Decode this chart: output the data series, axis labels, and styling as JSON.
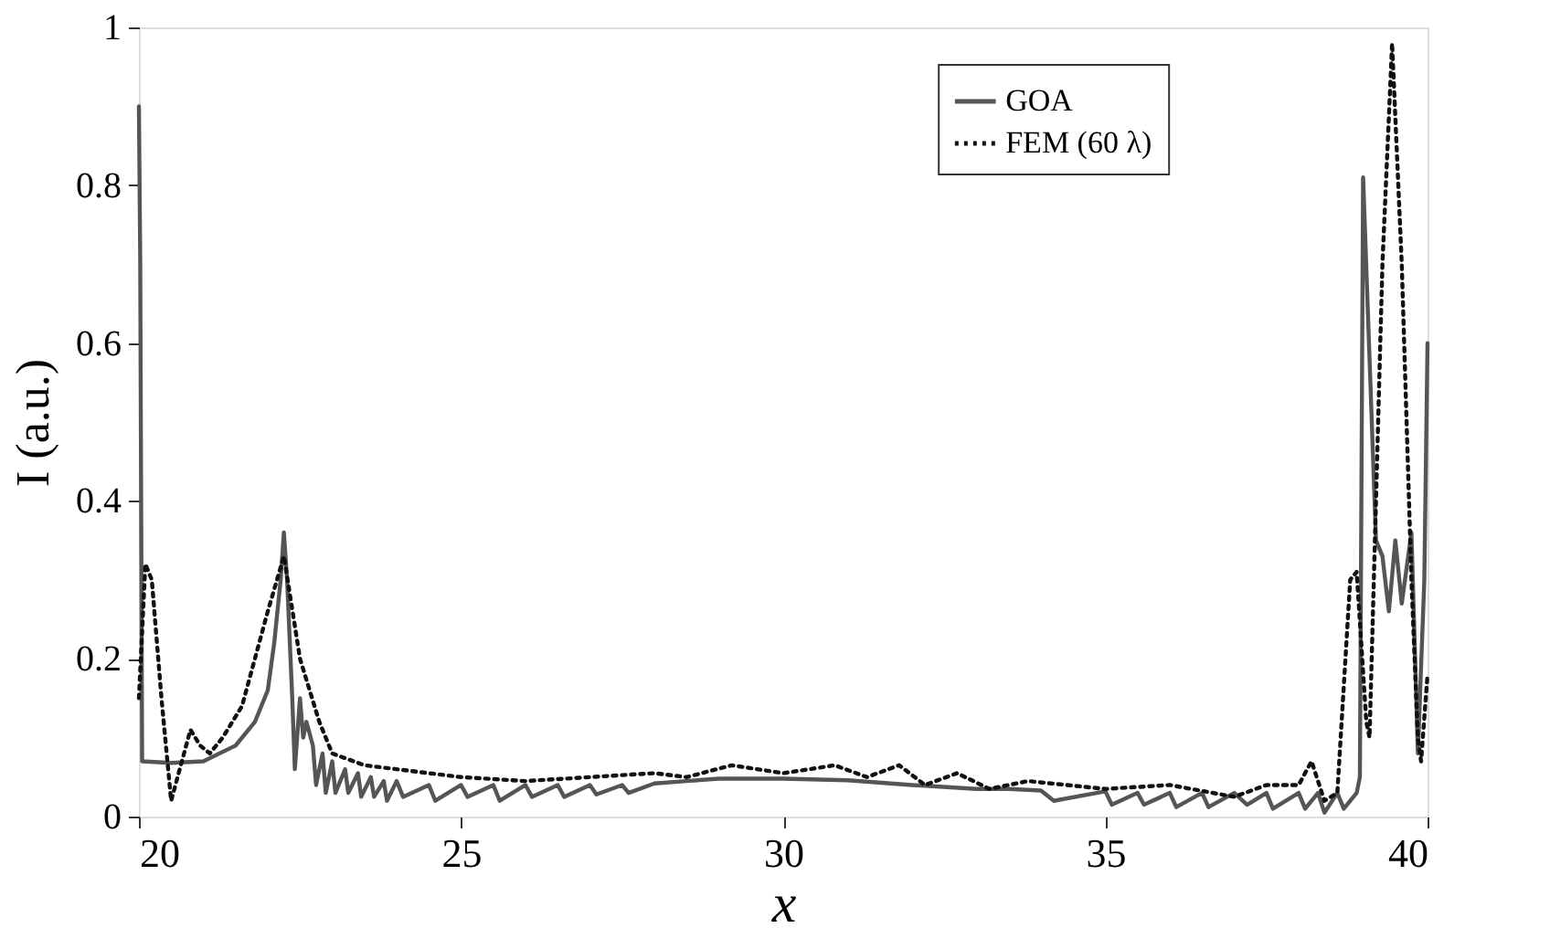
{
  "chart_data": {
    "type": "line",
    "xlabel": "x",
    "ylabel": "I (a.u.)",
    "xlim": [
      20,
      40
    ],
    "ylim": [
      0,
      1
    ],
    "xticks": [
      20,
      25,
      30,
      35,
      40
    ],
    "yticks": [
      0,
      0.2,
      0.4,
      0.6,
      0.8,
      1
    ],
    "grid": false,
    "legend": "top right",
    "marker": "none",
    "series": [
      {
        "name": "GOA",
        "color": "#555555",
        "line_style": "solid",
        "x": [
          20,
          20.02,
          20.05,
          20.5,
          21,
          21.5,
          21.8,
          22,
          22.1,
          22.2,
          22.25,
          22.3,
          22.38,
          22.42,
          22.5,
          22.55,
          22.6,
          22.7,
          22.75,
          22.85,
          22.9,
          23,
          23.05,
          23.2,
          23.25,
          23.4,
          23.45,
          23.6,
          23.65,
          23.8,
          23.85,
          24,
          24.1,
          24.5,
          24.6,
          25,
          25.1,
          25.5,
          25.6,
          26,
          26.1,
          26.5,
          26.6,
          27,
          27.1,
          27.5,
          27.6,
          28,
          28.5,
          29,
          30,
          31,
          32,
          33,
          33.5,
          34,
          34.2,
          35,
          35.1,
          35.5,
          35.6,
          36,
          36.1,
          36.5,
          36.6,
          37,
          37.2,
          37.5,
          37.6,
          38,
          38.1,
          38.3,
          38.4,
          38.6,
          38.7,
          38.9,
          38.95,
          39,
          39.2,
          39.3,
          39.4,
          39.5,
          39.6,
          39.75,
          39.85,
          39.95,
          40
        ],
        "values": [
          0.9,
          0.71,
          0.07,
          0.068,
          0.07,
          0.09,
          0.12,
          0.16,
          0.22,
          0.3,
          0.36,
          0.3,
          0.15,
          0.06,
          0.15,
          0.1,
          0.12,
          0.09,
          0.04,
          0.08,
          0.03,
          0.07,
          0.03,
          0.06,
          0.03,
          0.055,
          0.025,
          0.05,
          0.025,
          0.045,
          0.02,
          0.045,
          0.025,
          0.04,
          0.02,
          0.04,
          0.025,
          0.04,
          0.02,
          0.04,
          0.025,
          0.04,
          0.025,
          0.04,
          0.028,
          0.04,
          0.03,
          0.042,
          0.045,
          0.048,
          0.048,
          0.046,
          0.04,
          0.035,
          0.035,
          0.033,
          0.02,
          0.032,
          0.015,
          0.03,
          0.015,
          0.03,
          0.012,
          0.03,
          0.012,
          0.03,
          0.015,
          0.03,
          0.01,
          0.03,
          0.01,
          0.03,
          0.005,
          0.03,
          0.01,
          0.03,
          0.05,
          0.81,
          0.35,
          0.33,
          0.26,
          0.35,
          0.27,
          0.36,
          0.08,
          0.3,
          0.6
        ]
      },
      {
        "name": "FEM (60 λ)",
        "color": "#111111",
        "line_style": "dotted",
        "x": [
          20,
          20.1,
          20.2,
          20.35,
          20.5,
          20.6,
          20.8,
          20.95,
          21.1,
          21.3,
          21.6,
          22,
          22.25,
          22.5,
          22.8,
          23,
          23.5,
          24,
          25,
          26,
          27,
          28,
          28.5,
          29.2,
          30,
          30.8,
          31.3,
          31.8,
          32.2,
          32.7,
          33.2,
          33.8,
          35,
          36,
          37,
          37.5,
          38,
          38.2,
          38.4,
          38.6,
          38.8,
          38.9,
          39.05,
          39.1,
          39.3,
          39.45,
          39.6,
          39.75,
          39.85,
          39.9,
          40
        ],
        "values": [
          0.15,
          0.32,
          0.3,
          0.15,
          0.02,
          0.05,
          0.11,
          0.09,
          0.08,
          0.1,
          0.14,
          0.26,
          0.33,
          0.2,
          0.12,
          0.08,
          0.065,
          0.06,
          0.05,
          0.045,
          0.05,
          0.055,
          0.05,
          0.065,
          0.055,
          0.065,
          0.05,
          0.065,
          0.04,
          0.055,
          0.035,
          0.045,
          0.035,
          0.04,
          0.025,
          0.04,
          0.04,
          0.07,
          0.02,
          0.03,
          0.3,
          0.31,
          0.12,
          0.1,
          0.7,
          0.98,
          0.7,
          0.3,
          0.1,
          0.07,
          0.18
        ]
      }
    ]
  }
}
